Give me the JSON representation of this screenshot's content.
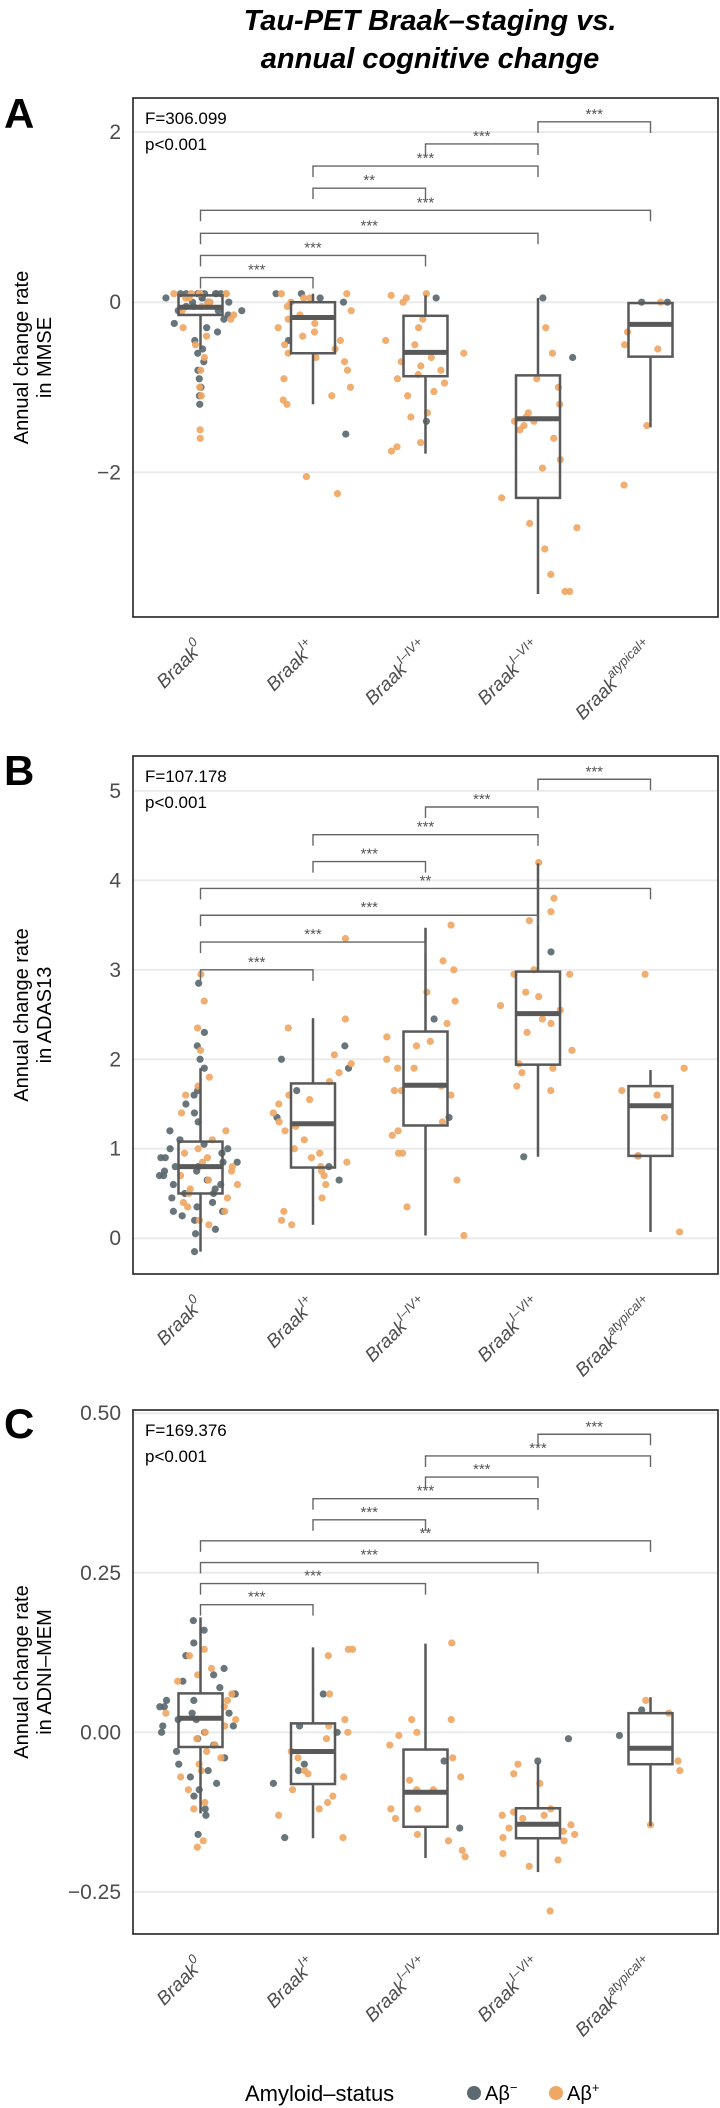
{
  "title": {
    "line1": "Tau-PET Braak–staging vs.",
    "line2": "annual cognitive change"
  },
  "legend": {
    "title": "Amyloid–status",
    "items": [
      {
        "label": "Aβ",
        "sup": "−",
        "color": "#5b6970"
      },
      {
        "label": "Aβ",
        "sup": "+",
        "color": "#efa764"
      }
    ]
  },
  "chart_data": [
    {
      "type": "box",
      "panel": "A",
      "stat": "F=306.099",
      "p": "p<0.001",
      "ylabel": [
        "Annual change rate",
        "in MMSE"
      ],
      "ylim": [
        -3.7,
        2.4
      ],
      "yticks": [
        {
          "v": 2,
          "label": "2"
        },
        {
          "v": 0,
          "label": "0"
        },
        {
          "v": -2,
          "label": "−2"
        }
      ],
      "categories": [
        {
          "base": "Braak",
          "sup": "0"
        },
        {
          "base": "Braak",
          "sup": "I+"
        },
        {
          "base": "Braak",
          "sup": "I–IV+"
        },
        {
          "base": "Braak",
          "sup": "I–VI+"
        },
        {
          "base": "Braak",
          "sup": "atypical+"
        }
      ],
      "boxes": [
        {
          "lo": -0.55,
          "q1": -0.15,
          "med": -0.06,
          "q3": 0.08,
          "hi": 0.1
        },
        {
          "lo": -1.2,
          "q1": -0.6,
          "med": -0.18,
          "q3": 0.0,
          "hi": 0.1
        },
        {
          "lo": -1.78,
          "q1": -0.87,
          "med": -0.59,
          "q3": -0.16,
          "hi": 0.08
        },
        {
          "lo": -3.43,
          "q1": -2.3,
          "med": -1.37,
          "q3": -0.86,
          "hi": 0.05
        },
        {
          "lo": -1.47,
          "q1": -0.64,
          "med": -0.26,
          "q3": -0.01,
          "hi": 0.0
        }
      ],
      "points": [
        {
          "neg": [
            0.1,
            0.1,
            0.1,
            0.1,
            0.1,
            0.1,
            0.1,
            0.1,
            0.05,
            0.05,
            0.05,
            0,
            0,
            0,
            0,
            -0.05,
            -0.05,
            -0.1,
            -0.1,
            -0.1,
            -0.15,
            -0.2,
            -0.25,
            -0.3,
            -0.35,
            -0.45,
            -0.55,
            -0.6,
            -0.7,
            -0.8,
            -0.9,
            -1.0,
            -1.1,
            -1.2
          ],
          "pos": [
            0.1,
            0.1,
            0.1,
            0.1,
            0.1,
            0.1,
            0.05,
            0.05,
            0,
            0,
            -0.05,
            -0.1,
            -0.15,
            -0.2,
            -0.3,
            -0.4,
            -0.5,
            -0.65,
            -0.8,
            -1.0,
            -1.1,
            -1.5,
            -1.6
          ]
        },
        {
          "neg": [
            0.05,
            0.1,
            0.1,
            0.0,
            -0.45,
            -1.55
          ],
          "pos": [
            0.05,
            0.1,
            0.05,
            0,
            -0.05,
            -0.1,
            -0.15,
            -0.2,
            -0.25,
            -0.3,
            -0.35,
            -0.4,
            -0.5,
            -0.55,
            -0.6,
            -0.65,
            -0.7,
            -0.8,
            -0.9,
            -1.0,
            -1.1,
            -1.15,
            -1.2,
            -2.05,
            -2.25,
            0.1,
            -0.45
          ]
        },
        {
          "neg": [
            0.05,
            -1.4
          ],
          "pos": [
            0.05,
            0.08,
            0.1,
            0.0,
            -0.2,
            -0.3,
            -0.45,
            -0.5,
            -0.6,
            -0.65,
            -0.7,
            -0.75,
            -0.8,
            -0.85,
            -0.9,
            -0.95,
            -1.05,
            -1.1,
            -1.3,
            -1.35,
            -1.65,
            -1.7,
            -1.75
          ]
        },
        {
          "neg": [
            0.05,
            -0.65
          ],
          "pos": [
            -0.3,
            -0.6,
            -0.9,
            -1.0,
            -1.2,
            -1.3,
            -1.35,
            -1.4,
            -1.4,
            -1.45,
            -1.5,
            -1.6,
            -1.85,
            -1.95,
            -2.3,
            -2.6,
            -2.65,
            -2.9,
            -3.2,
            -3.4,
            -3.4
          ]
        },
        {
          "neg": [
            0,
            0
          ],
          "pos": [
            0,
            -0.35,
            -0.5,
            -0.55,
            -1.45,
            -2.15
          ]
        }
      ],
      "comparisons": [
        {
          "from": 4,
          "to": 5,
          "y": 2.12,
          "label": "***"
        },
        {
          "from": 3,
          "to": 4,
          "y": 1.86,
          "label": "***"
        },
        {
          "from": 2,
          "to": 4,
          "y": 1.6,
          "label": "***"
        },
        {
          "from": 2,
          "to": 3,
          "y": 1.34,
          "label": "**"
        },
        {
          "from": 1,
          "to": 5,
          "y": 1.08,
          "label": "***"
        },
        {
          "from": 1,
          "to": 4,
          "y": 0.81,
          "label": "***"
        },
        {
          "from": 1,
          "to": 3,
          "y": 0.55,
          "label": "***"
        },
        {
          "from": 1,
          "to": 2,
          "y": 0.29,
          "label": "***"
        }
      ]
    },
    {
      "type": "box",
      "panel": "B",
      "stat": "F=107.178",
      "p": "p<0.001",
      "ylabel": [
        "Annual change rate",
        "in ADAS13"
      ],
      "ylim": [
        -0.4,
        5.39
      ],
      "yticks": [
        {
          "v": 0,
          "label": "0"
        },
        {
          "v": 1,
          "label": "1"
        },
        {
          "v": 2,
          "label": "2"
        },
        {
          "v": 3,
          "label": "3"
        },
        {
          "v": 4,
          "label": "4"
        },
        {
          "v": 5,
          "label": "5"
        }
      ],
      "categories": [
        {
          "base": "Braak",
          "sup": "0"
        },
        {
          "base": "Braak",
          "sup": "I+"
        },
        {
          "base": "Braak",
          "sup": "I–IV+"
        },
        {
          "base": "Braak",
          "sup": "I–VI+"
        },
        {
          "base": "Braak",
          "sup": "atypical+"
        }
      ],
      "boxes": [
        {
          "lo": -0.15,
          "q1": 0.5,
          "med": 0.8,
          "q3": 1.08,
          "hi": 1.9
        },
        {
          "lo": 0.15,
          "q1": 0.79,
          "med": 1.28,
          "q3": 1.73,
          "hi": 2.46
        },
        {
          "lo": 0.03,
          "q1": 1.26,
          "med": 1.71,
          "q3": 2.31,
          "hi": 3.47
        },
        {
          "lo": 0.91,
          "q1": 1.94,
          "med": 2.51,
          "q3": 2.98,
          "hi": 4.19
        },
        {
          "lo": 0.07,
          "q1": 0.92,
          "med": 1.48,
          "q3": 1.7,
          "hi": 1.88
        }
      ],
      "points": [
        {
          "neg": [
            2.85,
            2.3,
            2.15,
            2.0,
            1.9,
            1.65,
            1.6,
            1.5,
            1.4,
            1.3,
            1.2,
            1.1,
            1.05,
            1.0,
            0.95,
            0.9,
            0.9,
            0.85,
            0.8,
            0.8,
            0.75,
            0.7,
            0.7,
            0.65,
            0.6,
            0.6,
            0.55,
            0.5,
            0.45,
            0.4,
            0.35,
            0.3,
            0.25,
            0.2,
            0.1,
            0.05,
            -0.15,
            1.0,
            0.85,
            0.75,
            0.5,
            0.3
          ],
          "pos": [
            2.95,
            2.65,
            2.35,
            2.1,
            1.8,
            1.7,
            1.6,
            1.4,
            1.2,
            1.1,
            1.0,
            0.95,
            0.9,
            0.85,
            0.8,
            0.75,
            0.7,
            0.65,
            0.6,
            0.55,
            0.5,
            0.45,
            0.4,
            0.35,
            0.3,
            0.2,
            0.15
          ]
        },
        {
          "neg": [
            2.15,
            2.0,
            1.9,
            1.65,
            1.35,
            0.8,
            0.65
          ],
          "pos": [
            3.35,
            2.45,
            2.35,
            2.05,
            1.95,
            1.85,
            1.75,
            1.6,
            1.55,
            1.5,
            1.4,
            1.3,
            1.25,
            1.2,
            1.1,
            1.0,
            0.95,
            0.9,
            0.85,
            0.8,
            0.75,
            0.7,
            0.6,
            0.45,
            0.3,
            0.2,
            0.15
          ]
        },
        {
          "neg": [
            2.45,
            1.35
          ],
          "pos": [
            3.5,
            3.1,
            3.0,
            2.75,
            2.65,
            2.4,
            2.25,
            2.2,
            2.15,
            2.0,
            1.9,
            1.9,
            1.7,
            1.65,
            1.65,
            1.6,
            1.3,
            1.2,
            1.15,
            0.95,
            0.95,
            0.65,
            0.35,
            0.03
          ]
        },
        {
          "neg": [
            3.2,
            0.91
          ],
          "pos": [
            4.2,
            3.8,
            3.65,
            3.55,
            3.0,
            2.95,
            2.95,
            2.75,
            2.7,
            2.6,
            2.55,
            2.45,
            2.4,
            2.3,
            2.1,
            1.95,
            1.9,
            1.85,
            1.7,
            1.65
          ]
        },
        {
          "neg": [
            0.92
          ],
          "pos": [
            2.95,
            1.9,
            1.65,
            1.6,
            1.35,
            0.92,
            0.07
          ]
        }
      ],
      "comparisons": [
        {
          "from": 4,
          "to": 5,
          "y": 5.13,
          "label": "***"
        },
        {
          "from": 3,
          "to": 4,
          "y": 4.82,
          "label": "***"
        },
        {
          "from": 2,
          "to": 4,
          "y": 4.51,
          "label": "***"
        },
        {
          "from": 2,
          "to": 3,
          "y": 4.21,
          "label": "***"
        },
        {
          "from": 1,
          "to": 5,
          "y": 3.91,
          "label": "**"
        },
        {
          "from": 1,
          "to": 4,
          "y": 3.61,
          "label": "***"
        },
        {
          "from": 1,
          "to": 3,
          "y": 3.31,
          "label": "***"
        },
        {
          "from": 1,
          "to": 2,
          "y": 3.0,
          "label": "***"
        }
      ]
    },
    {
      "type": "box",
      "panel": "C",
      "stat": "F=169.376",
      "p": "p<0.001",
      "ylabel": [
        "Annual change rate",
        "in ADNI–MEM"
      ],
      "ylim": [
        -0.316,
        0.505
      ],
      "yticks": [
        {
          "v": 0.5,
          "label": "0.50"
        },
        {
          "v": 0.25,
          "label": "0.25"
        },
        {
          "v": 0,
          "label": "0.00"
        },
        {
          "v": -0.25,
          "label": "−0.25"
        }
      ],
      "categories": [
        {
          "base": "Braak",
          "sup": "0"
        },
        {
          "base": "Braak",
          "sup": "I+"
        },
        {
          "base": "Braak",
          "sup": "I–IV+"
        },
        {
          "base": "Braak",
          "sup": "I–VI+"
        },
        {
          "base": "Braak",
          "sup": "atypical+"
        }
      ],
      "boxes": [
        {
          "lo": -0.127,
          "q1": -0.023,
          "med": 0.022,
          "q3": 0.061,
          "hi": 0.18
        },
        {
          "lo": -0.166,
          "q1": -0.081,
          "med": -0.03,
          "q3": 0.014,
          "hi": 0.133
        },
        {
          "lo": -0.197,
          "q1": -0.148,
          "med": -0.094,
          "q3": -0.027,
          "hi": 0.139
        },
        {
          "lo": -0.219,
          "q1": -0.166,
          "med": -0.144,
          "q3": -0.119,
          "hi": -0.048
        },
        {
          "lo": -0.147,
          "q1": -0.05,
          "med": -0.025,
          "q3": 0.03,
          "hi": 0.055
        }
      ],
      "points": [
        {
          "neg": [
            0.175,
            0.16,
            0.14,
            0.12,
            0.1,
            0.09,
            0.08,
            0.07,
            0.06,
            0.05,
            0.05,
            0.04,
            0.03,
            0.03,
            0.02,
            0.02,
            0.01,
            0,
            0,
            -0.01,
            -0.02,
            -0.03,
            -0.04,
            -0.05,
            -0.06,
            -0.07,
            -0.08,
            -0.09,
            -0.1,
            -0.12,
            -0.13,
            -0.16,
            0.06,
            0.04,
            0.01,
            -0.02
          ],
          "pos": [
            0.13,
            0.12,
            0.1,
            0.09,
            0.08,
            0.06,
            0.05,
            0.04,
            0.03,
            0.02,
            0.01,
            0,
            -0.01,
            -0.02,
            -0.03,
            -0.04,
            -0.05,
            -0.06,
            -0.07,
            -0.09,
            -0.11,
            -0.12,
            -0.17,
            -0.18
          ]
        },
        {
          "neg": [
            0.06,
            0.01,
            0,
            -0.05,
            -0.06,
            -0.08,
            -0.165
          ],
          "pos": [
            0.13,
            0.13,
            0.12,
            0.06,
            0.02,
            0.01,
            0,
            -0.01,
            -0.03,
            -0.04,
            -0.06,
            -0.065,
            -0.07,
            -0.09,
            -0.1,
            -0.11,
            -0.12,
            -0.13,
            -0.165
          ]
        },
        {
          "neg": [
            -0.045,
            -0.15
          ],
          "pos": [
            0.14,
            0.02,
            0.02,
            0,
            -0.005,
            -0.02,
            -0.04,
            -0.07,
            -0.075,
            -0.09,
            -0.09,
            -0.12,
            -0.12,
            -0.135,
            -0.16,
            -0.17,
            -0.185,
            -0.195
          ]
        },
        {
          "neg": [
            -0.01,
            -0.045
          ],
          "pos": [
            -0.05,
            -0.065,
            -0.08,
            -0.12,
            -0.125,
            -0.13,
            -0.13,
            -0.135,
            -0.145,
            -0.15,
            -0.155,
            -0.16,
            -0.165,
            -0.17,
            -0.19,
            -0.2,
            -0.21,
            -0.28
          ]
        },
        {
          "neg": [
            0.035,
            -0.005
          ],
          "pos": [
            0.05,
            0.03,
            -0.045,
            -0.06,
            -0.145
          ]
        }
      ],
      "comparisons": [
        {
          "from": 4,
          "to": 5,
          "y": 0.467,
          "label": "***"
        },
        {
          "from": 3,
          "to": 5,
          "y": 0.433,
          "label": "***"
        },
        {
          "from": 3,
          "to": 4,
          "y": 0.4,
          "label": "***"
        },
        {
          "from": 2,
          "to": 4,
          "y": 0.366,
          "label": "***"
        },
        {
          "from": 2,
          "to": 3,
          "y": 0.333,
          "label": "***"
        },
        {
          "from": 1,
          "to": 5,
          "y": 0.3,
          "label": "**"
        },
        {
          "from": 1,
          "to": 4,
          "y": 0.266,
          "label": "***"
        },
        {
          "from": 1,
          "to": 3,
          "y": 0.233,
          "label": "***"
        },
        {
          "from": 1,
          "to": 2,
          "y": 0.2,
          "label": "***"
        }
      ]
    }
  ]
}
